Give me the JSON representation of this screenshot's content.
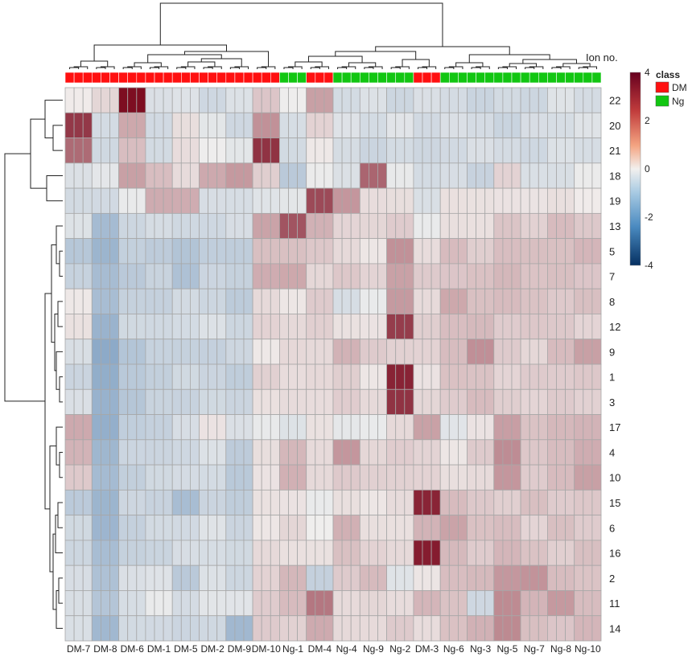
{
  "chart_data": {
    "type": "heatmap",
    "row_axis_title": "Ion no.",
    "rows": [
      "22",
      "20",
      "21",
      "18",
      "19",
      "13",
      "5",
      "7",
      "8",
      "12",
      "9",
      "1",
      "3",
      "17",
      "4",
      "10",
      "15",
      "6",
      "16",
      "2",
      "11",
      "14"
    ],
    "samples": [
      "DM-7",
      "DM-8",
      "DM-6",
      "DM-1",
      "DM-5",
      "DM-2",
      "DM-9",
      "DM-10",
      "Ng-1",
      "DM-4",
      "Ng-4",
      "Ng-9",
      "Ng-2",
      "DM-3",
      "Ng-6",
      "Ng-3",
      "Ng-5",
      "Ng-7",
      "Ng-8",
      "Ng-10"
    ],
    "sample_class": [
      "DM",
      "DM",
      "DM",
      "DM",
      "DM",
      "DM",
      "DM",
      "DM",
      "Ng",
      "DM",
      "Ng",
      "Ng",
      "Ng",
      "DM",
      "Ng",
      "Ng",
      "Ng",
      "Ng",
      "Ng",
      "Ng"
    ],
    "subcolumns_per_sample": 3,
    "values": [
      [
        0.2,
        0.4,
        4,
        -0.6,
        -0.4,
        -0.6,
        -0.5,
        0.8,
        -0.2,
        1.4,
        -0.5,
        -0.5,
        -0.7,
        -0.6,
        -0.6,
        -0.7,
        -0.7,
        -0.7,
        -0.5,
        -0.6
      ],
      [
        3.2,
        -0.5,
        1.2,
        -0.6,
        0.2,
        -0.3,
        -0.6,
        1.6,
        -0.5,
        0.4,
        -0.4,
        -0.5,
        -0.4,
        -0.6,
        -0.6,
        -0.6,
        -0.7,
        -0.6,
        -0.5,
        -0.5
      ],
      [
        2.2,
        -0.7,
        1.0,
        -0.7,
        0.4,
        -0.2,
        -0.3,
        3.4,
        -0.7,
        0.2,
        -0.7,
        -0.8,
        -0.5,
        -0.8,
        -0.6,
        -0.6,
        -0.6,
        -0.6,
        -0.5,
        -0.5
      ],
      [
        -0.4,
        -0.4,
        1.4,
        1.0,
        0.3,
        1.3,
        1.4,
        0.6,
        -1.0,
        -0.2,
        -0.4,
        2.3,
        -0.2,
        -0.5,
        -0.6,
        -0.8,
        0.4,
        -0.5,
        -0.4,
        -0.2
      ],
      [
        -0.7,
        -0.6,
        -0.3,
        1.2,
        1.3,
        -0.6,
        -0.5,
        -0.5,
        -0.3,
        3.0,
        1.5,
        0.4,
        0.2,
        -0.5,
        0.4,
        0.2,
        0.3,
        0.1,
        0.3,
        0.2
      ],
      [
        -0.3,
        -1.6,
        -0.7,
        -0.7,
        -0.7,
        -0.6,
        -0.6,
        1.4,
        2.6,
        1.1,
        0.6,
        0.4,
        0.7,
        -0.3,
        0.3,
        0.4,
        0.7,
        0.6,
        0.8,
        0.7
      ],
      [
        -1.2,
        -1.6,
        -1.0,
        -1.0,
        -1.4,
        -1.0,
        -0.9,
        0.8,
        0.9,
        0.6,
        0.4,
        0.3,
        1.6,
        0.4,
        0.8,
        0.6,
        1.0,
        0.8,
        0.9,
        0.9
      ],
      [
        -1.0,
        -1.5,
        -1.0,
        -0.9,
        -1.3,
        -0.9,
        -0.9,
        1.3,
        1.2,
        0.5,
        0.6,
        0.5,
        1.5,
        0.6,
        0.8,
        0.7,
        1.0,
        0.9,
        0.8,
        0.8
      ],
      [
        0.2,
        -1.6,
        -0.9,
        -0.8,
        -0.7,
        -0.7,
        -1.2,
        0.4,
        0.3,
        0.6,
        -0.5,
        -0.3,
        1.5,
        0.5,
        1.2,
        0.9,
        0.8,
        0.8,
        0.8,
        0.8
      ],
      [
        0.2,
        -1.7,
        -0.8,
        -0.7,
        -0.5,
        -0.5,
        -0.7,
        0.4,
        0.4,
        0.7,
        0.2,
        0.3,
        3.0,
        0.6,
        1.0,
        0.9,
        0.7,
        0.6,
        0.7,
        0.6
      ],
      [
        -0.4,
        -2.1,
        -1.2,
        -1.0,
        -0.9,
        -0.8,
        -0.8,
        0.2,
        0.3,
        0.4,
        1.2,
        0.6,
        0.6,
        0.4,
        0.9,
        1.8,
        0.6,
        0.5,
        0.8,
        1.4
      ],
      [
        -0.8,
        -1.8,
        -1.2,
        -0.9,
        -0.8,
        -0.8,
        -0.9,
        0.5,
        0.4,
        0.3,
        0.6,
        0.3,
        3.5,
        0.3,
        0.7,
        0.8,
        0.6,
        0.6,
        0.7,
        0.6
      ],
      [
        -0.6,
        -1.8,
        -1.1,
        -0.9,
        -0.8,
        -0.8,
        -0.8,
        0.4,
        0.3,
        0.4,
        0.5,
        0.4,
        3.4,
        0.4,
        0.7,
        0.8,
        0.6,
        0.6,
        0.6,
        0.6
      ],
      [
        1.3,
        -2.0,
        -1.0,
        -0.8,
        -0.6,
        0.3,
        -0.6,
        -0.2,
        -0.3,
        0.2,
        -0.2,
        -0.3,
        0.4,
        1.5,
        -0.4,
        0.3,
        1.3,
        0.8,
        1.1,
        1.0
      ],
      [
        1.0,
        -1.6,
        -0.9,
        -0.8,
        -0.6,
        -0.5,
        -1.0,
        0.2,
        1.0,
        0.5,
        1.5,
        0.5,
        0.5,
        0.5,
        0.3,
        0.6,
        1.8,
        0.6,
        0.9,
        1.3
      ],
      [
        0.8,
        -1.6,
        -0.9,
        -0.8,
        -0.6,
        -0.5,
        -1.2,
        0.3,
        1.0,
        0.4,
        0.8,
        0.5,
        0.6,
        0.4,
        0.3,
        0.5,
        1.5,
        0.7,
        0.8,
        1.4
      ],
      [
        -1.1,
        -1.6,
        -0.8,
        -0.8,
        -1.6,
        -0.8,
        -0.9,
        0.2,
        0.3,
        -0.3,
        0.3,
        0.3,
        0.3,
        3.6,
        0.8,
        0.7,
        0.7,
        0.8,
        0.7,
        0.6
      ],
      [
        -0.8,
        -1.7,
        -0.8,
        -0.7,
        -0.6,
        -0.5,
        -0.8,
        0.3,
        0.4,
        0.0,
        1.0,
        0.3,
        0.4,
        1.0,
        1.4,
        0.7,
        0.9,
        0.6,
        0.8,
        0.7
      ],
      [
        -0.7,
        -1.6,
        -0.9,
        -0.7,
        -0.6,
        -0.5,
        -0.8,
        0.4,
        0.4,
        0.2,
        0.9,
        0.4,
        0.4,
        3.8,
        0.9,
        0.7,
        0.9,
        0.8,
        0.7,
        0.8
      ],
      [
        -0.6,
        -1.3,
        -0.6,
        -0.4,
        -1.0,
        -0.5,
        -0.7,
        0.4,
        1.0,
        -0.8,
        0.6,
        1.0,
        -0.5,
        0.2,
        1.0,
        0.9,
        1.6,
        1.5,
        0.9,
        0.9
      ],
      [
        -0.4,
        -1.3,
        -0.5,
        -0.3,
        -0.6,
        -0.2,
        -0.4,
        0.7,
        0.8,
        2.1,
        0.5,
        0.4,
        0.4,
        0.9,
        0.8,
        -0.6,
        1.7,
        1.1,
        1.4,
        0.9
      ],
      [
        -0.5,
        -1.5,
        -0.7,
        -0.6,
        -0.9,
        -0.7,
        -1.5,
        0.6,
        0.6,
        1.1,
        0.4,
        0.5,
        0.6,
        0.4,
        0.7,
        1.1,
        1.9,
        0.8,
        0.8,
        0.9
      ]
    ],
    "value_range": [
      -4,
      4
    ],
    "colorbar_ticks": [
      "4",
      "2",
      "0",
      "-2",
      "-4"
    ],
    "colors": {
      "low": "#2b66a4",
      "mid": "#f2f0ee",
      "high": "#7b0a1e",
      "cell_border": "#a7a7a7"
    },
    "legend": {
      "title": "class",
      "entries": [
        {
          "label": "DM",
          "color": "#ff1010"
        },
        {
          "label": "Ng",
          "color": "#12c612"
        }
      ]
    },
    "dendrograms": {
      "rows": true,
      "columns": true
    }
  }
}
